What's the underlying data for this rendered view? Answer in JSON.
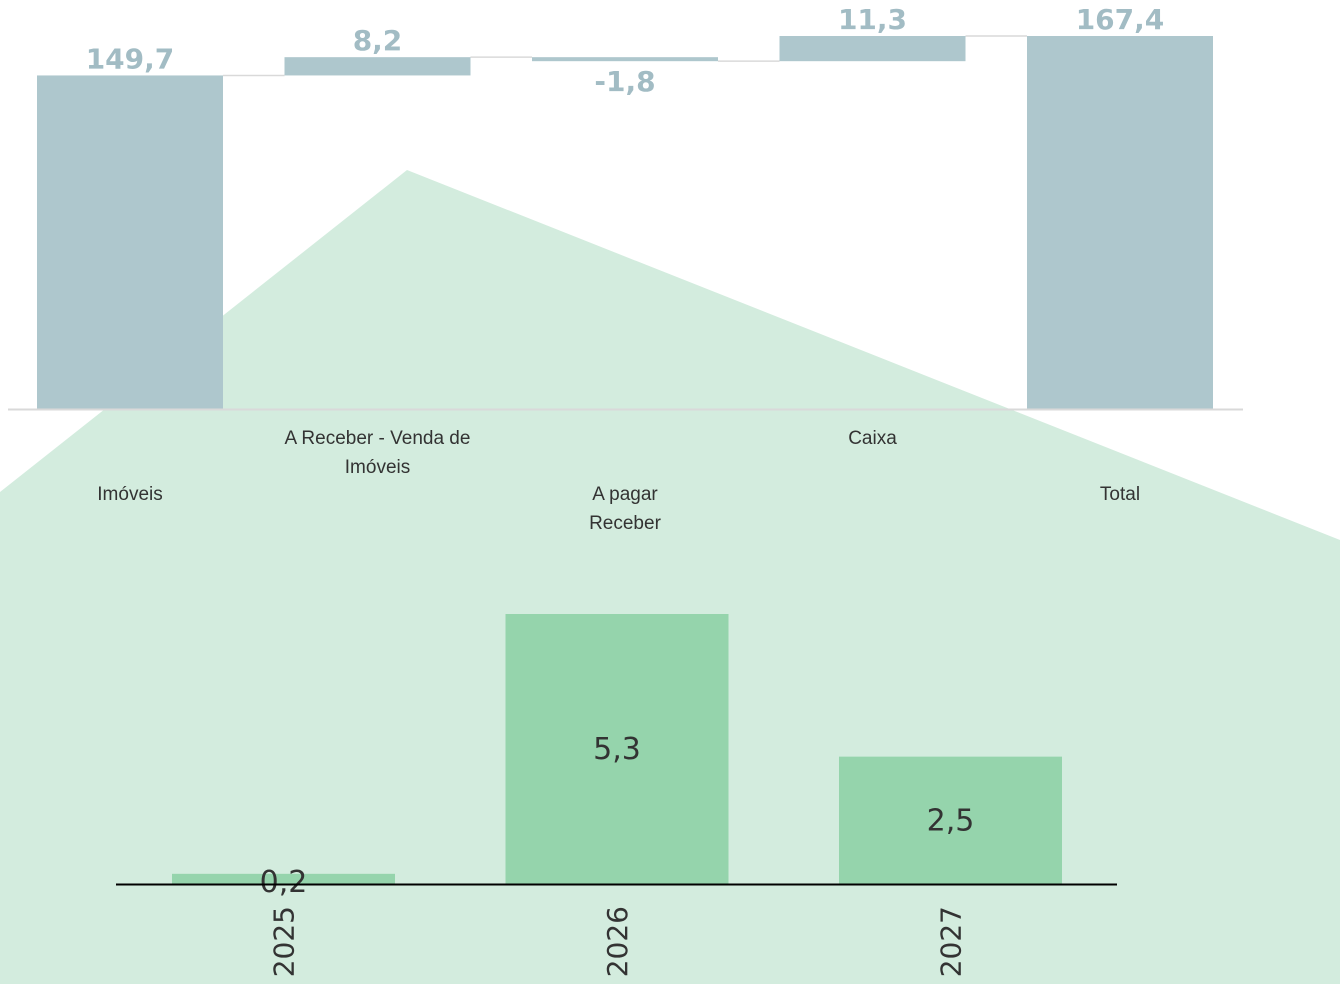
{
  "colors": {
    "waterfall_bar": "#aec7cd",
    "waterfall_label": "#a2bcc4",
    "column_bar": "#95d4ac",
    "zoom_region": "#d3ecde",
    "axis_top": "#d9d9d9",
    "axis_bottom": "#000000",
    "text": "#333333"
  },
  "chart_data": [
    {
      "type": "bar",
      "subtype": "waterfall",
      "categories": [
        [
          "Imóveis"
        ],
        [
          "A Receber - Venda de",
          "Imóveis"
        ],
        [
          "A pagar",
          "Receber"
        ],
        [
          "Caixa"
        ],
        [
          "Total"
        ]
      ],
      "values": [
        149.7,
        8.2,
        -1.8,
        11.3,
        167.4
      ],
      "value_labels": [
        "149,7",
        "8,2",
        "-1,8",
        "11,3",
        "167,4"
      ],
      "is_total": [
        true,
        false,
        false,
        false,
        true
      ],
      "ylim": [
        0,
        167.4
      ],
      "grid": false,
      "legend": "none"
    },
    {
      "type": "bar",
      "categories": [
        "2025",
        "2026",
        "2027"
      ],
      "values": [
        0.2,
        5.3,
        2.5
      ],
      "value_labels": [
        "0,2",
        "5,3",
        "2,5"
      ],
      "ylim": [
        0,
        5.3
      ],
      "grid": false,
      "legend": "none"
    }
  ]
}
